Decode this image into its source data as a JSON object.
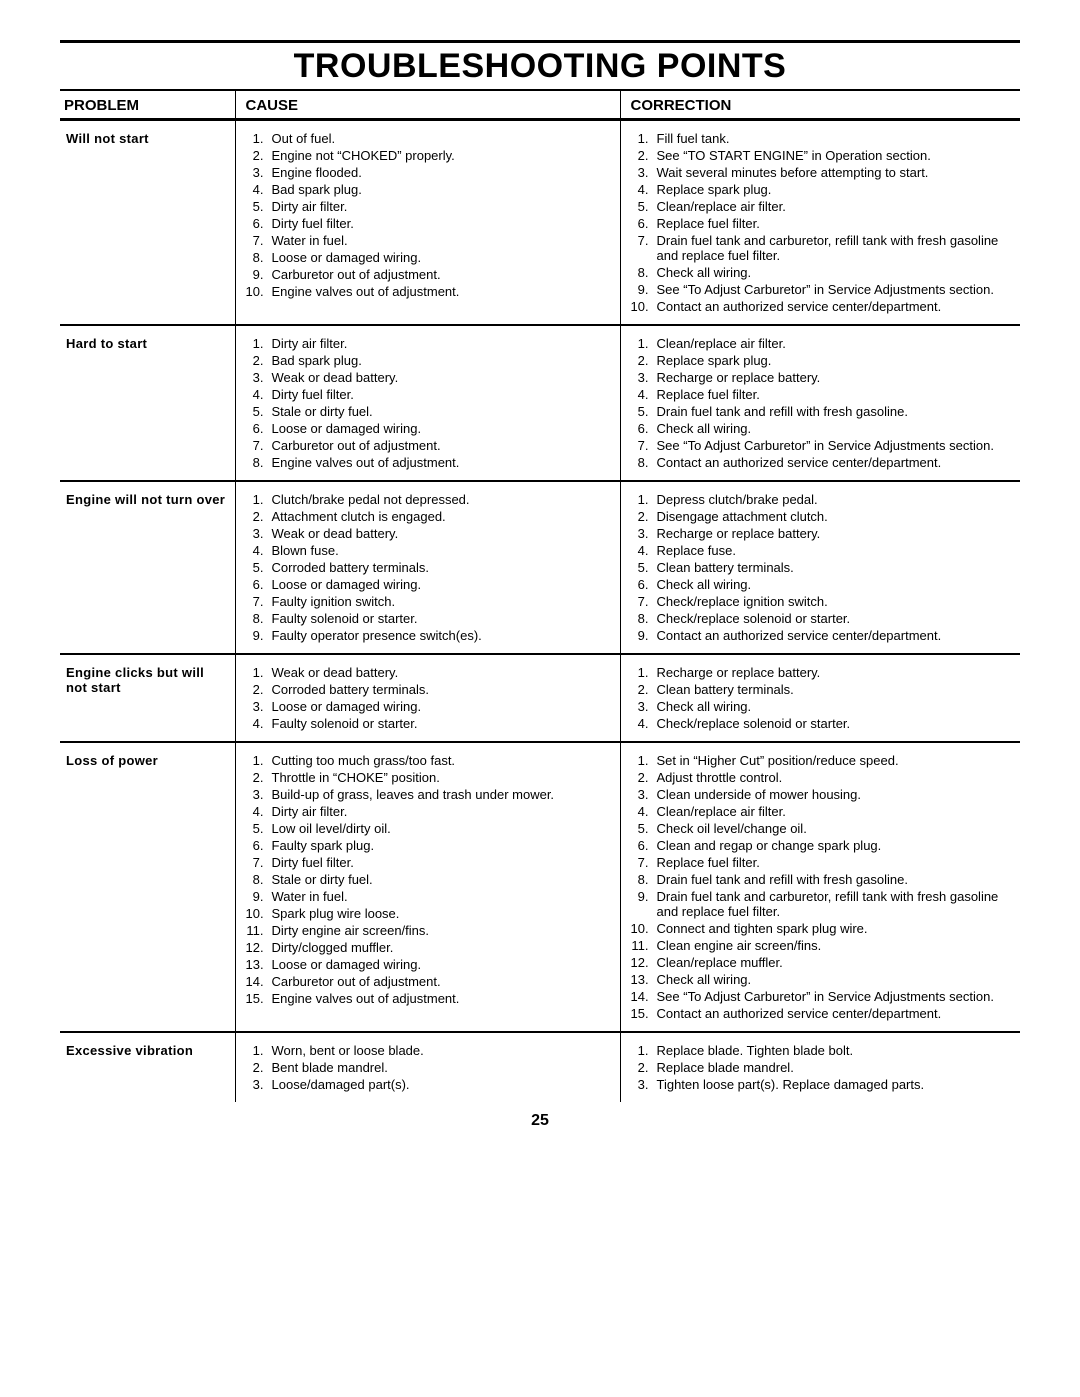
{
  "title": "TROUBLESHOOTING POINTS",
  "pageNumber": "25",
  "headers": {
    "problem": "PROBLEM",
    "cause": "CAUSE",
    "correction": "CORRECTION"
  },
  "rows": [
    {
      "problem": "Will not start",
      "causes": [
        "Out of fuel.",
        "Engine not “CHOKED” properly.",
        "Engine flooded.",
        "Bad spark plug.",
        "Dirty air filter.",
        "Dirty fuel filter.",
        "Water in fuel.",
        "Loose or damaged wiring.",
        "Carburetor out of adjustment.",
        "Engine valves out of adjustment."
      ],
      "corrections": [
        "Fill fuel tank.",
        "See “TO START ENGINE” in Operation section.",
        "Wait several minutes before attempting to start.",
        "Replace spark plug.",
        "Clean/replace air filter.",
        "Replace fuel filter.",
        "Drain fuel tank and carburetor, refill tank with fresh gasoline and replace fuel filter.",
        "Check all wiring.",
        "See “To Adjust Carburetor” in Service Adjustments section.",
        "Contact an authorized service center/department."
      ]
    },
    {
      "problem": "Hard to start",
      "causes": [
        "Dirty air filter.",
        "Bad spark plug.",
        "Weak or dead battery.",
        "Dirty fuel filter.",
        "Stale or dirty fuel.",
        "Loose or damaged wiring.",
        "Carburetor out of adjustment.",
        "Engine valves out of adjustment."
      ],
      "corrections": [
        "Clean/replace air filter.",
        "Replace spark plug.",
        "Recharge or replace battery.",
        "Replace fuel filter.",
        "Drain fuel tank and refill with fresh gasoline.",
        "Check all wiring.",
        "See “To Adjust Carburetor” in Service Adjustments section.",
        "Contact an authorized service center/department."
      ]
    },
    {
      "problem": "Engine will not turn over",
      "causes": [
        "Clutch/brake pedal not depressed.",
        "Attachment clutch is engaged.",
        "Weak or dead battery.",
        "Blown fuse.",
        "Corroded battery terminals.",
        "Loose or damaged wiring.",
        "Faulty ignition switch.",
        "Faulty solenoid or starter.",
        "Faulty operator presence switch(es)."
      ],
      "corrections": [
        "Depress clutch/brake pedal.",
        "Disengage attachment clutch.",
        "Recharge or replace battery.",
        "Replace fuse.",
        "Clean battery terminals.",
        "Check all wiring.",
        "Check/replace ignition switch.",
        "Check/replace solenoid or starter.",
        "Contact an authorized service center/department."
      ]
    },
    {
      "problem": "Engine clicks but will not start",
      "causes": [
        "Weak or dead battery.",
        "Corroded battery terminals.",
        "Loose or damaged wiring.",
        "Faulty solenoid or starter."
      ],
      "corrections": [
        "Recharge or replace battery.",
        "Clean battery terminals.",
        "Check all wiring.",
        "Check/replace solenoid or starter."
      ]
    },
    {
      "problem": "Loss of power",
      "causes": [
        "Cutting too much grass/too fast.",
        "Throttle in “CHOKE” position.",
        "Build-up of grass, leaves and trash under mower.",
        "Dirty air filter.",
        "Low oil level/dirty oil.",
        "Faulty spark plug.",
        "Dirty fuel filter.",
        "Stale or dirty fuel.",
        "Water in fuel.",
        "Spark plug wire loose.",
        "Dirty engine air screen/fins.",
        "Dirty/clogged muffler.",
        "Loose or damaged wiring.",
        "Carburetor out of adjustment.",
        "Engine valves out of adjustment."
      ],
      "corrections": [
        "Set in “Higher Cut” position/reduce speed.",
        "Adjust throttle control.",
        "Clean underside of mower housing.",
        "Clean/replace air filter.",
        "Check oil level/change oil.",
        "Clean and regap or change spark plug.",
        "Replace fuel filter.",
        "Drain fuel tank and refill with fresh gasoline.",
        "Drain fuel tank and carburetor, refill tank with fresh gasoline and replace fuel filter.",
        "Connect and tighten spark plug wire.",
        "Clean engine air screen/fins.",
        "Clean/replace muffler.",
        "Check all wiring.",
        "See “To Adjust Carburetor” in Service Adjustments section.",
        "Contact an authorized service center/department."
      ]
    },
    {
      "problem": "Excessive vibration",
      "causes": [
        "Worn, bent or loose blade.",
        "Bent blade mandrel.",
        "Loose/damaged part(s)."
      ],
      "corrections": [
        "Replace blade.  Tighten blade bolt.",
        "Replace blade mandrel.",
        "Tighten loose part(s).  Replace damaged parts."
      ]
    }
  ]
}
